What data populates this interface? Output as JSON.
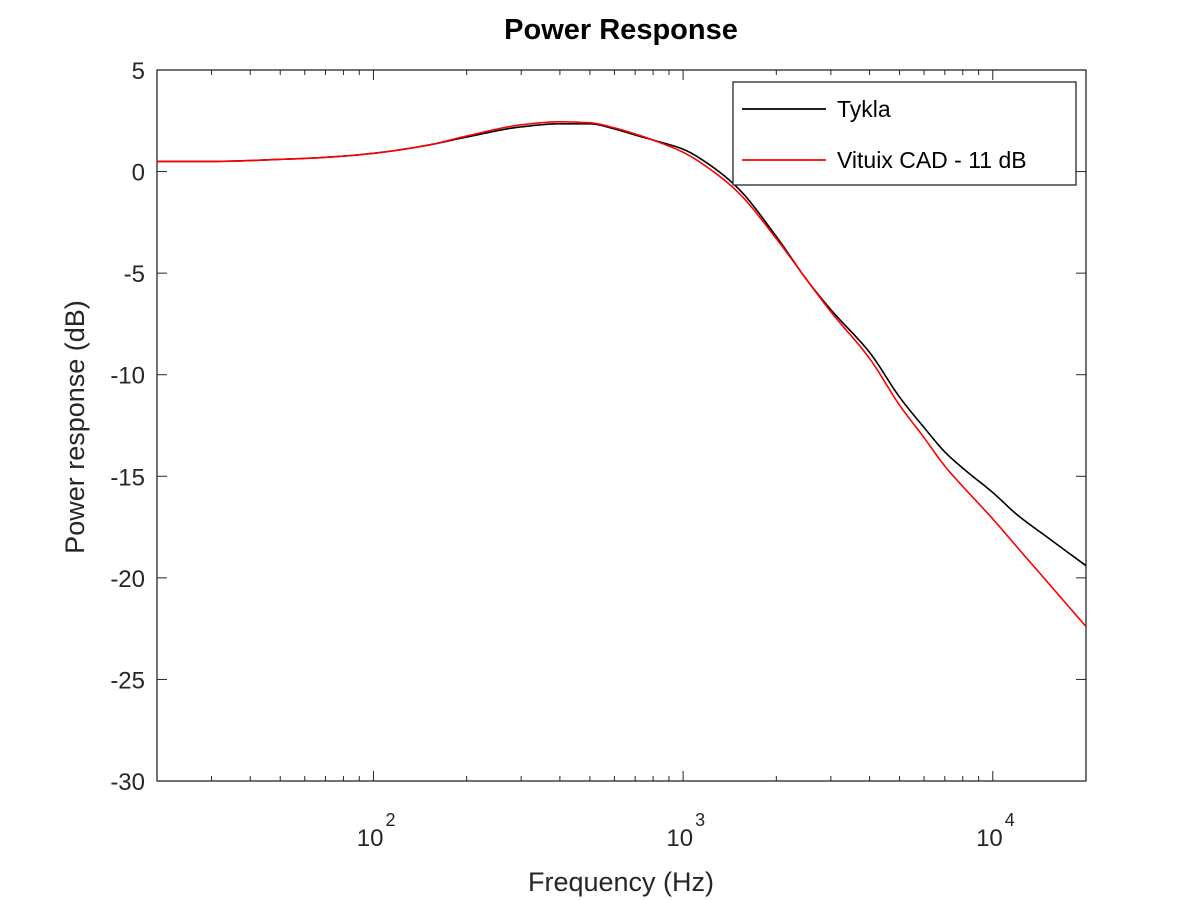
{
  "chart_data": {
    "type": "line",
    "title": "Power Response",
    "xlabel": "Frequency (Hz)",
    "ylabel": "Power response (dB)",
    "xscale": "log",
    "xlim": [
      20,
      20000
    ],
    "ylim": [
      -30,
      5
    ],
    "x_ticks": [
      {
        "value": 100,
        "base": "10",
        "exp": "2"
      },
      {
        "value": 1000,
        "base": "10",
        "exp": "3"
      },
      {
        "value": 10000,
        "base": "10",
        "exp": "4"
      }
    ],
    "y_ticks": [
      5,
      0,
      -5,
      -10,
      -15,
      -20,
      -25,
      -30
    ],
    "y_tick_labels": [
      "5",
      "0",
      "-5",
      "-10",
      "-15",
      "-20",
      "-25",
      "-30"
    ],
    "grid": false,
    "legend_position": "top-right",
    "series": [
      {
        "name": "Tykla",
        "color": "#000000",
        "x": [
          20,
          30,
          50,
          70,
          100,
          150,
          200,
          300,
          400,
          500,
          600,
          700,
          800,
          1000,
          1200,
          1500,
          2000,
          2500,
          3000,
          4000,
          5000,
          6000,
          7000,
          8000,
          10000,
          12000,
          15000,
          20000
        ],
        "y": [
          0.5,
          0.5,
          0.6,
          0.7,
          0.9,
          1.3,
          1.7,
          2.2,
          2.35,
          2.35,
          2.1,
          1.8,
          1.55,
          1.1,
          0.4,
          -0.8,
          -3.2,
          -5.3,
          -6.8,
          -8.9,
          -11.1,
          -12.6,
          -13.8,
          -14.6,
          -15.8,
          -16.9,
          -18.0,
          -19.4
        ]
      },
      {
        "name": "Vituix CAD - 11 dB",
        "color": "#ff0000",
        "x": [
          20,
          30,
          50,
          70,
          100,
          150,
          200,
          300,
          400,
          500,
          600,
          700,
          800,
          1000,
          1200,
          1500,
          2000,
          2500,
          3000,
          4000,
          5000,
          6000,
          7000,
          8000,
          10000,
          12000,
          15000,
          20000
        ],
        "y": [
          0.5,
          0.5,
          0.6,
          0.7,
          0.9,
          1.3,
          1.75,
          2.3,
          2.45,
          2.4,
          2.15,
          1.85,
          1.55,
          0.95,
          0.2,
          -1.0,
          -3.3,
          -5.3,
          -6.9,
          -9.2,
          -11.5,
          -13.1,
          -14.5,
          -15.5,
          -17.1,
          -18.5,
          -20.2,
          -22.4
        ]
      }
    ]
  }
}
